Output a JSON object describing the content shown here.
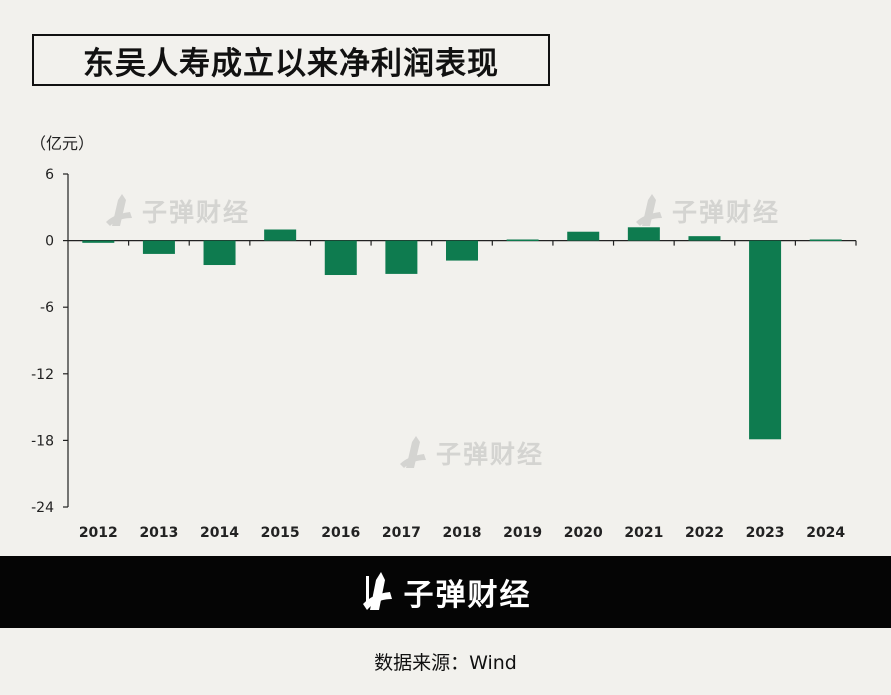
{
  "title": "东吴人寿成立以来净利润表现",
  "unit_label": "（亿元）",
  "watermark_text": "子弹财经",
  "footer": {
    "brand": "子弹财经",
    "source": "数据来源：Wind"
  },
  "colors": {
    "bar": "#0e7b4f",
    "axis": "#222222",
    "background": "#f2f1ed"
  },
  "chart_data": {
    "type": "bar",
    "categories": [
      "2012",
      "2013",
      "2014",
      "2015",
      "2016",
      "2017",
      "2018",
      "2019",
      "2020",
      "2021",
      "2022",
      "2023",
      "2024"
    ],
    "values": [
      -0.2,
      -1.2,
      -2.2,
      1.0,
      -3.1,
      -3.0,
      -1.8,
      0.1,
      0.8,
      1.2,
      0.4,
      -17.9,
      0.1
    ],
    "yticks": [
      6,
      0,
      -6,
      -12,
      -18,
      -24
    ],
    "ylim": [
      -24,
      6
    ],
    "grid": false,
    "legend": "none"
  }
}
